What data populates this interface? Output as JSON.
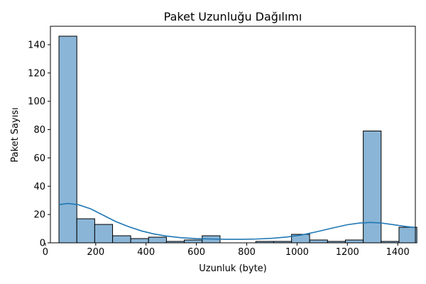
{
  "chart_data": {
    "type": "bar",
    "title": "Paket Uzunluğu Dağılımı",
    "xlabel": "Uzunluk (byte)",
    "ylabel": "Paket Sayısı",
    "xlim": [
      20,
      1470
    ],
    "ylim": [
      0,
      153
    ],
    "xticks": [
      0,
      200,
      400,
      600,
      800,
      1000,
      1200,
      1400
    ],
    "yticks": [
      0,
      20,
      40,
      60,
      80,
      100,
      120,
      140
    ],
    "grid": false,
    "bins": [
      {
        "x0": 54,
        "x1": 125,
        "count": 146
      },
      {
        "x0": 125,
        "x1": 196,
        "count": 17
      },
      {
        "x0": 196,
        "x1": 267,
        "count": 13
      },
      {
        "x0": 267,
        "x1": 339,
        "count": 5
      },
      {
        "x0": 339,
        "x1": 410,
        "count": 3
      },
      {
        "x0": 410,
        "x1": 481,
        "count": 4
      },
      {
        "x0": 481,
        "x1": 552,
        "count": 1
      },
      {
        "x0": 552,
        "x1": 623,
        "count": 2
      },
      {
        "x0": 623,
        "x1": 694,
        "count": 5
      },
      {
        "x0": 694,
        "x1": 765,
        "count": 0
      },
      {
        "x0": 765,
        "x1": 836,
        "count": 0
      },
      {
        "x0": 836,
        "x1": 907,
        "count": 1
      },
      {
        "x0": 907,
        "x1": 978,
        "count": 1
      },
      {
        "x0": 978,
        "x1": 1050,
        "count": 6
      },
      {
        "x0": 1050,
        "x1": 1121,
        "count": 2
      },
      {
        "x0": 1121,
        "x1": 1192,
        "count": 1
      },
      {
        "x0": 1192,
        "x1": 1263,
        "count": 2
      },
      {
        "x0": 1263,
        "x1": 1334,
        "count": 79
      },
      {
        "x0": 1334,
        "x1": 1405,
        "count": 1
      },
      {
        "x0": 1405,
        "x1": 1476,
        "count": 11
      }
    ],
    "kde": {
      "x": [
        54,
        90,
        130,
        180,
        230,
        280,
        330,
        380,
        430,
        480,
        540,
        600,
        660,
        720,
        780,
        840,
        900,
        960,
        1020,
        1080,
        1140,
        1200,
        1250,
        1290,
        1330,
        1380,
        1430,
        1470
      ],
      "y": [
        27,
        27.8,
        27,
        24,
        19.5,
        15,
        11.5,
        8.5,
        6.3,
        4.8,
        3.6,
        3.0,
        2.7,
        2.5,
        2.5,
        2.7,
        3.2,
        4.1,
        5.6,
        7.9,
        10.4,
        12.8,
        14.0,
        14.4,
        14.1,
        12.9,
        11.6,
        10.9
      ]
    },
    "colors": {
      "bar_fill": "#8ab5d6",
      "bar_edge": "#000000",
      "kde_line": "#1f77b4"
    }
  }
}
